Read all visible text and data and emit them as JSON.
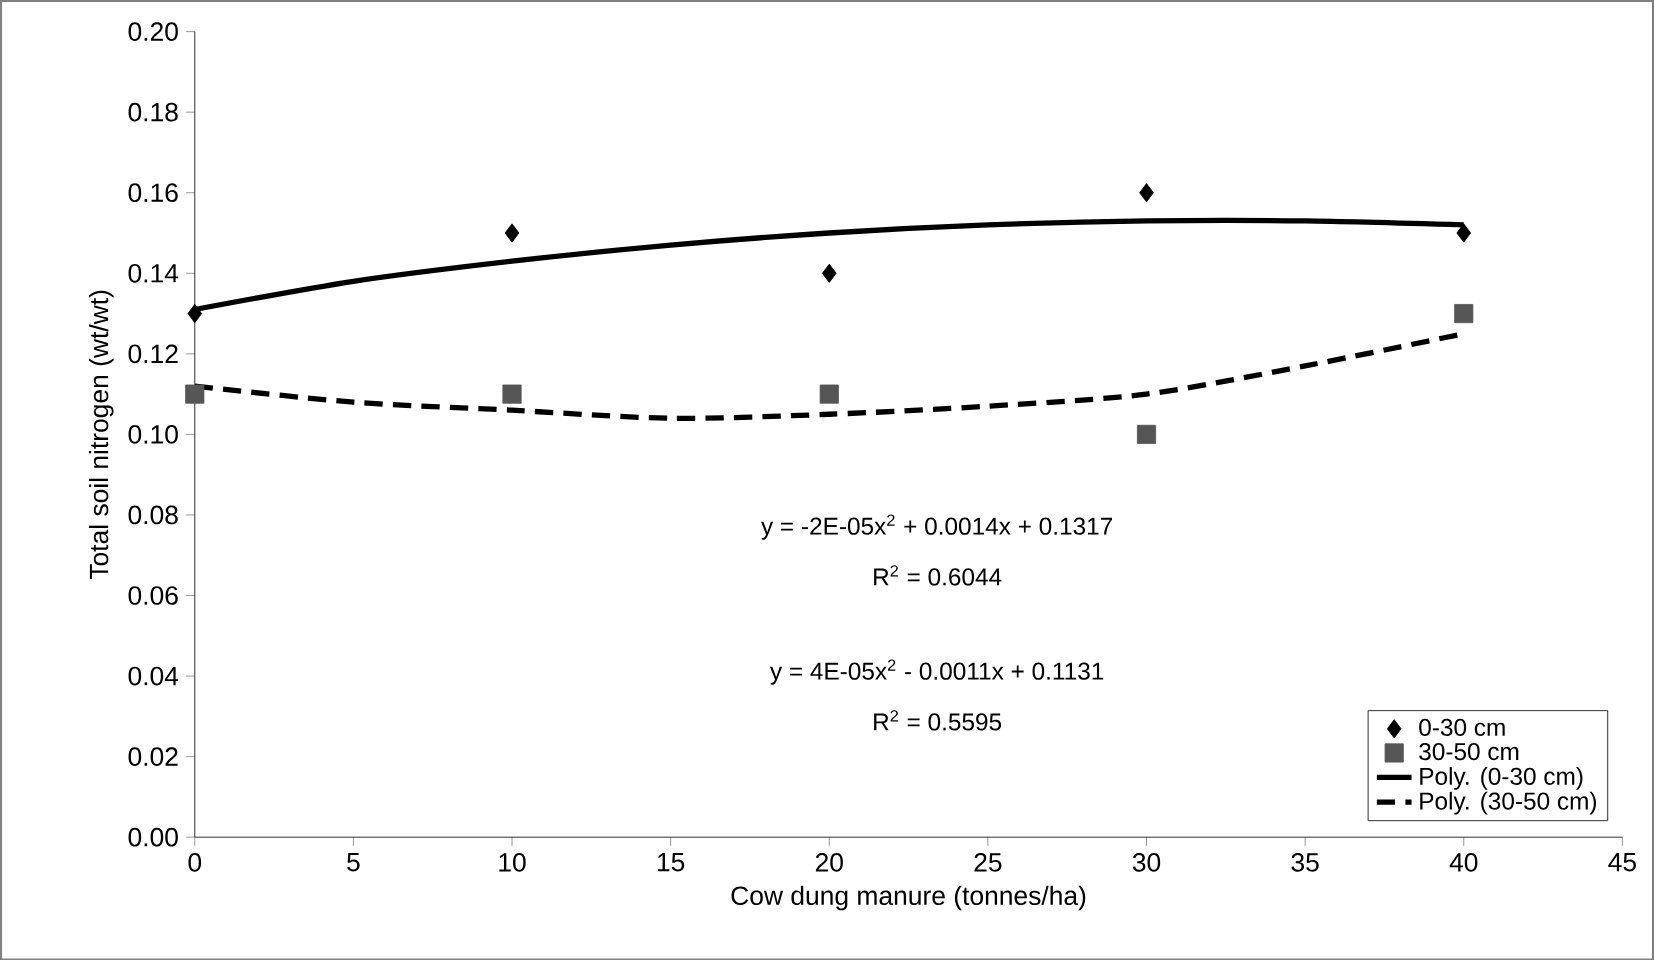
{
  "chart_data": {
    "type": "scatter",
    "xlabel": "Cow dung manure (tonnes/ha)",
    "ylabel": "Total soil nitrogen (wt/wt)",
    "x": [
      0,
      10,
      20,
      30,
      40
    ],
    "series": [
      {
        "name": "0-30 cm",
        "marker": "diamond",
        "color": "#000000",
        "values": [
          0.13,
          0.15,
          0.14,
          0.16,
          0.15
        ]
      },
      {
        "name": "30-50 cm",
        "marker": "square",
        "color": "#555555",
        "values": [
          0.11,
          0.11,
          0.11,
          0.1,
          0.13
        ]
      },
      {
        "name": "Poly. (0-30 cm)",
        "type": "line",
        "marker": "none",
        "line_style": "solid",
        "color": "#000000",
        "x": [
          0,
          5,
          10,
          15,
          20,
          25,
          30,
          35,
          40
        ],
        "values": [
          0.131,
          0.138,
          0.143,
          0.147,
          0.15,
          0.152,
          0.153,
          0.153,
          0.152
        ]
      },
      {
        "name": "Poly. (30-50 cm)",
        "type": "line",
        "marker": "none",
        "line_style": "dashed",
        "color": "#000000",
        "x": [
          0,
          5,
          10,
          15,
          20,
          25,
          30,
          35,
          40
        ],
        "values": [
          0.112,
          0.108,
          0.106,
          0.104,
          0.105,
          0.107,
          0.11,
          0.117,
          0.125
        ]
      }
    ],
    "xlim": [
      0,
      45
    ],
    "xticks": [
      0,
      5,
      10,
      15,
      20,
      25,
      30,
      35,
      40,
      45
    ],
    "ylim": [
      0,
      0.2
    ],
    "yticks": [
      {
        "value": 0,
        "label": "0.00"
      },
      {
        "value": 0.02,
        "label": "0.02"
      },
      {
        "value": 0.04,
        "label": "0.04"
      },
      {
        "value": 0.06,
        "label": "0.06"
      },
      {
        "value": 0.08,
        "label": "0.08"
      },
      {
        "value": 0.1,
        "label": "0.10"
      },
      {
        "value": 0.12,
        "label": "0.12"
      },
      {
        "value": 0.14,
        "label": "0.14"
      },
      {
        "value": 0.16,
        "label": "0.16"
      },
      {
        "value": 0.18,
        "label": "0.18"
      },
      {
        "value": 0.2,
        "label": "0.20"
      }
    ],
    "annotations": [
      "y = -2E-05x$^{2}$ + 0.0014x + 0.1317",
      "R$^{2}$ = 0.6044",
      "y = 4E-05x$^{2}$ - 0.0011x + 0.1131",
      "R$^{2}$ = 0.5595"
    ],
    "legend": "bottom right",
    "grid": false
  }
}
